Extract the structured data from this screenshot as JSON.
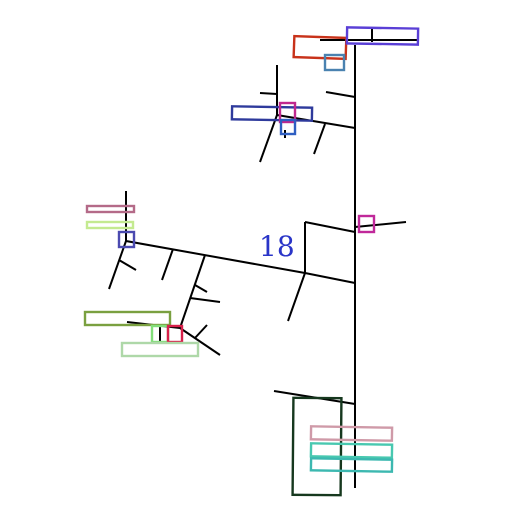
{
  "diagram": {
    "label": "18",
    "colors": {
      "edge": "#000000",
      "label": "#2a35c8"
    },
    "markers": [
      {
        "name": "marker-orange-red",
        "color": "#c8321a"
      },
      {
        "name": "marker-violet-top",
        "color": "#5a3fd6"
      },
      {
        "name": "marker-steel-blue",
        "color": "#4a82b0"
      },
      {
        "name": "marker-navy",
        "color": "#2e3a9c"
      },
      {
        "name": "marker-magenta-small",
        "color": "#c0288e"
      },
      {
        "name": "marker-blue-small",
        "color": "#2f5fc2"
      },
      {
        "name": "marker-magenta-center",
        "color": "#c0289a"
      },
      {
        "name": "marker-mauve",
        "color": "#b46a88"
      },
      {
        "name": "marker-lime-light",
        "color": "#c4ea90"
      },
      {
        "name": "marker-indigo-small",
        "color": "#4b4ab0"
      },
      {
        "name": "marker-olive",
        "color": "#7aa040"
      },
      {
        "name": "marker-light-green",
        "color": "#82de7a"
      },
      {
        "name": "marker-crimson",
        "color": "#d8204a"
      },
      {
        "name": "marker-pale-green",
        "color": "#aed8a8"
      },
      {
        "name": "marker-dark-green",
        "color": "#16381e"
      },
      {
        "name": "marker-pink",
        "color": "#cf9aa8"
      },
      {
        "name": "marker-teal-1",
        "color": "#48c8b0"
      },
      {
        "name": "marker-teal-2",
        "color": "#3cb8b0"
      }
    ]
  }
}
